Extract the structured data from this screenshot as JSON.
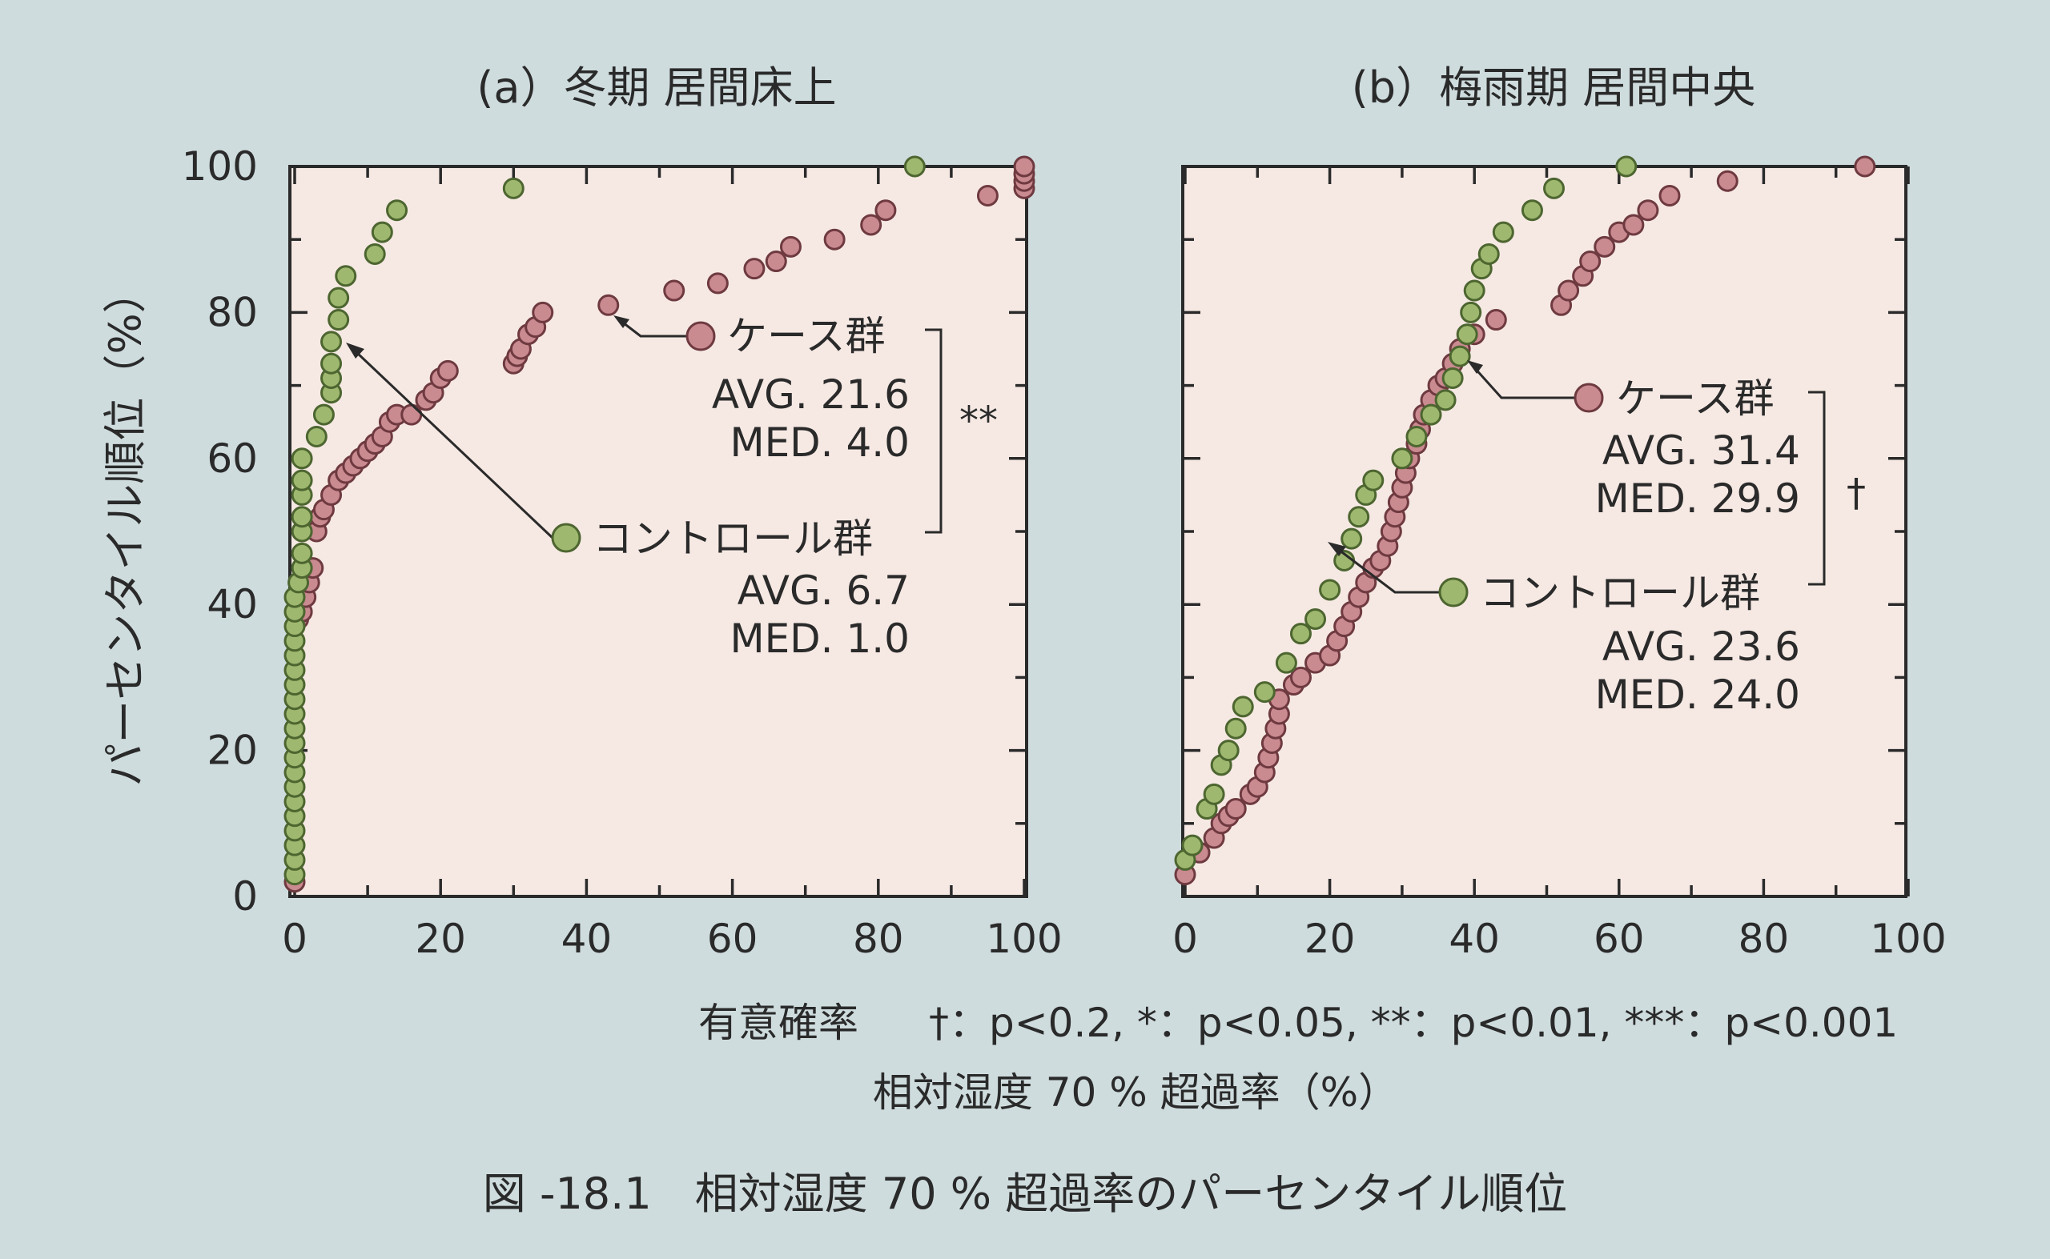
{
  "chart_data": [
    {
      "type": "scatter",
      "title": "(a）冬期 居間床上",
      "xlabel": "",
      "ylabel": "パーセンタイル順位（%）",
      "xlim": [
        0,
        100
      ],
      "ylim": [
        0,
        100
      ],
      "xticks": [
        "0",
        "20",
        "40",
        "60",
        "80",
        "100"
      ],
      "yticks": [
        "0",
        "20",
        "40",
        "60",
        "80",
        "100"
      ],
      "series": [
        {
          "name": "ケース群",
          "color": "#c98a90",
          "avg_label": "AVG. 21.6",
          "med_label": "MED.  4.0",
          "points": [
            [
              0,
              2
            ],
            [
              0.5,
              38
            ],
            [
              1,
              39
            ],
            [
              1.5,
              41
            ],
            [
              2,
              43
            ],
            [
              2.5,
              45
            ],
            [
              3,
              50
            ],
            [
              3.5,
              52
            ],
            [
              4,
              53
            ],
            [
              5,
              55
            ],
            [
              6,
              57
            ],
            [
              7,
              58
            ],
            [
              8,
              59
            ],
            [
              9,
              60
            ],
            [
              10,
              61
            ],
            [
              11,
              62
            ],
            [
              12,
              63
            ],
            [
              13,
              65
            ],
            [
              14,
              66
            ],
            [
              16,
              66
            ],
            [
              18,
              68
            ],
            [
              19,
              69
            ],
            [
              20,
              71
            ],
            [
              21,
              72
            ],
            [
              30,
              73
            ],
            [
              30.5,
              74
            ],
            [
              31,
              75
            ],
            [
              32,
              77
            ],
            [
              33,
              78
            ],
            [
              34,
              80
            ],
            [
              43,
              81
            ],
            [
              52,
              83
            ],
            [
              58,
              84
            ],
            [
              63,
              86
            ],
            [
              66,
              87
            ],
            [
              68,
              89
            ],
            [
              74,
              90
            ],
            [
              79,
              92
            ],
            [
              81,
              94
            ],
            [
              95,
              96
            ],
            [
              100,
              97
            ],
            [
              100,
              98
            ],
            [
              100,
              99
            ],
            [
              100,
              100
            ]
          ]
        },
        {
          "name": "コントロール群",
          "color": "#9fb86f",
          "avg_label": "AVG.  6.7",
          "med_label": "MED.  1.0",
          "points": [
            [
              0,
              3
            ],
            [
              0,
              5
            ],
            [
              0,
              7
            ],
            [
              0,
              9
            ],
            [
              0,
              11
            ],
            [
              0,
              13
            ],
            [
              0,
              15
            ],
            [
              0,
              17
            ],
            [
              0,
              19
            ],
            [
              0,
              21
            ],
            [
              0,
              23
            ],
            [
              0,
              25
            ],
            [
              0,
              27
            ],
            [
              0,
              29
            ],
            [
              0,
              31
            ],
            [
              0,
              33
            ],
            [
              0,
              35
            ],
            [
              0,
              37
            ],
            [
              0,
              39
            ],
            [
              0,
              41
            ],
            [
              0.5,
              43
            ],
            [
              1,
              45
            ],
            [
              1,
              47
            ],
            [
              1,
              50
            ],
            [
              1,
              52
            ],
            [
              1,
              55
            ],
            [
              1,
              57
            ],
            [
              1,
              60
            ],
            [
              3,
              63
            ],
            [
              4,
              66
            ],
            [
              5,
              69
            ],
            [
              5,
              71
            ],
            [
              5,
              73
            ],
            [
              5,
              76
            ],
            [
              6,
              79
            ],
            [
              6,
              82
            ],
            [
              7,
              85
            ],
            [
              11,
              88
            ],
            [
              12,
              91
            ],
            [
              14,
              94
            ],
            [
              30,
              97
            ],
            [
              85,
              100
            ]
          ]
        }
      ],
      "significance": "**"
    },
    {
      "type": "scatter",
      "title": "(b）梅雨期 居間中央",
      "xlabel": "",
      "ylabel": "",
      "xlim": [
        0,
        100
      ],
      "ylim": [
        0,
        100
      ],
      "xticks": [
        "0",
        "20",
        "40",
        "60",
        "80",
        "100"
      ],
      "yticks": [],
      "series": [
        {
          "name": "ケース群",
          "color": "#c98a90",
          "avg_label": "AVG. 31.4",
          "med_label": "MED. 29.9",
          "points": [
            [
              0,
              3
            ],
            [
              2,
              6
            ],
            [
              4,
              8
            ],
            [
              5,
              10
            ],
            [
              6,
              11
            ],
            [
              7,
              12
            ],
            [
              9,
              14
            ],
            [
              10,
              15
            ],
            [
              11,
              17
            ],
            [
              11.5,
              19
            ],
            [
              12,
              21
            ],
            [
              12.5,
              23
            ],
            [
              13,
              25
            ],
            [
              13,
              27
            ],
            [
              15,
              29
            ],
            [
              16,
              30
            ],
            [
              18,
              32
            ],
            [
              20,
              33
            ],
            [
              21,
              35
            ],
            [
              22,
              37
            ],
            [
              23,
              39
            ],
            [
              24,
              41
            ],
            [
              25,
              43
            ],
            [
              26,
              45
            ],
            [
              27,
              46
            ],
            [
              28,
              48
            ],
            [
              28.5,
              50
            ],
            [
              29,
              52
            ],
            [
              29.5,
              54
            ],
            [
              30,
              56
            ],
            [
              30.5,
              58
            ],
            [
              31,
              60
            ],
            [
              32,
              62
            ],
            [
              32.5,
              64
            ],
            [
              33,
              66
            ],
            [
              34,
              68
            ],
            [
              35,
              70
            ],
            [
              36,
              71
            ],
            [
              37,
              73
            ],
            [
              38,
              75
            ],
            [
              40,
              77
            ],
            [
              43,
              79
            ],
            [
              52,
              81
            ],
            [
              53,
              83
            ],
            [
              55,
              85
            ],
            [
              56,
              87
            ],
            [
              58,
              89
            ],
            [
              60,
              91
            ],
            [
              62,
              92
            ],
            [
              64,
              94
            ],
            [
              67,
              96
            ],
            [
              75,
              98
            ],
            [
              94,
              100
            ]
          ]
        },
        {
          "name": "コントロール群",
          "color": "#9fb86f",
          "avg_label": "AVG.  23.6",
          "med_label": "MED.  24.0",
          "points": [
            [
              0,
              5
            ],
            [
              1,
              7
            ],
            [
              3,
              12
            ],
            [
              4,
              14
            ],
            [
              5,
              18
            ],
            [
              6,
              20
            ],
            [
              7,
              23
            ],
            [
              8,
              26
            ],
            [
              11,
              28
            ],
            [
              14,
              32
            ],
            [
              16,
              36
            ],
            [
              18,
              38
            ],
            [
              20,
              42
            ],
            [
              22,
              46
            ],
            [
              23,
              49
            ],
            [
              24,
              52
            ],
            [
              25,
              55
            ],
            [
              26,
              57
            ],
            [
              30,
              60
            ],
            [
              32,
              63
            ],
            [
              34,
              66
            ],
            [
              36,
              68
            ],
            [
              37,
              71
            ],
            [
              38,
              74
            ],
            [
              39,
              77
            ],
            [
              39.5,
              80
            ],
            [
              40,
              83
            ],
            [
              41,
              86
            ],
            [
              42,
              88
            ],
            [
              44,
              91
            ],
            [
              48,
              94
            ],
            [
              51,
              97
            ],
            [
              61,
              100
            ]
          ]
        }
      ],
      "significance": "†"
    }
  ],
  "shared": {
    "significance_note_prefix": "有意確率",
    "significance_note_items": "†：p<0.2,  *：p<0.05,  **：p<0.01,   ***：p<0.001",
    "xlabel": "相対湿度 70 % 超過率（%）",
    "caption": "図 -18.1　相対湿度 70 % 超過率のパーセンタイル順位"
  }
}
